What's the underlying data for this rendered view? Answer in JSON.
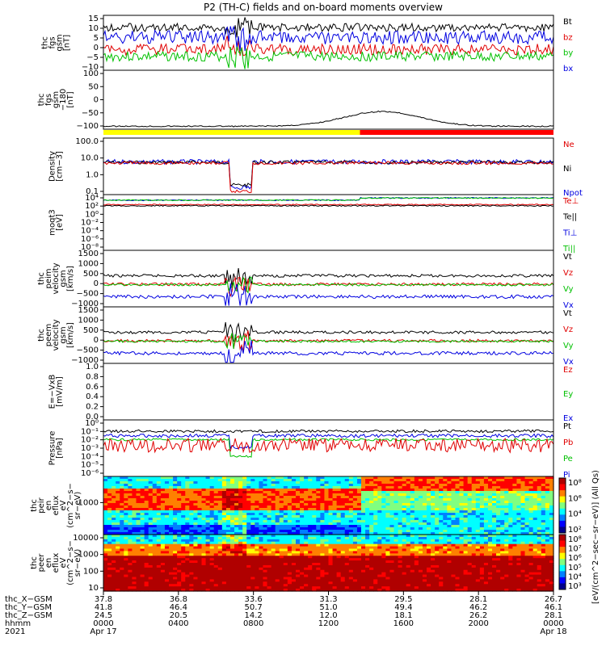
{
  "title": "P2 (TH-C) fields and on-board moments overview",
  "chart_data": [
    {
      "type": "line",
      "ylabel": "thc\nfgs\ngsm\n[nT]",
      "yticks": [
        "15",
        "10",
        "5",
        "0",
        "−5",
        "−10"
      ],
      "ylim": [
        -15,
        15
      ],
      "legend": [
        {
          "name": "Bt",
          "color": "#000000"
        },
        {
          "name": "bz",
          "color": "#e00000"
        },
        {
          "name": "by",
          "color": "#00c000"
        },
        {
          "name": "bx",
          "color": "#0000e0"
        }
      ],
      "series": [
        {
          "name": "Bt",
          "level": 8
        },
        {
          "name": "bz",
          "level": -3
        },
        {
          "name": "by",
          "level": -6
        },
        {
          "name": "bx",
          "level": 2
        }
      ]
    },
    {
      "type": "line",
      "ylabel": "thc\nfgs\ngsm\n−180\n[nT]",
      "yticks": [
        "100",
        "50",
        "0",
        "−50",
        "−100"
      ],
      "ylim": [
        -120,
        100
      ],
      "series": [
        {
          "name": "black",
          "level": -100
        }
      ]
    },
    {
      "type": "line",
      "ylabel": "Density\n[cm−3]",
      "yticks": [
        "100.0",
        "10.0",
        "1.0",
        "0.1"
      ],
      "scale": "log",
      "legend": [
        {
          "name": "Ne",
          "color": "#e00000"
        },
        {
          "name": "Ni",
          "color": "#000000"
        },
        {
          "name": "Npot",
          "color": "#0000e0"
        }
      ]
    },
    {
      "type": "line",
      "ylabel": "moqt3\n[eV]",
      "yticks": [
        "10⁴",
        "10²",
        "10⁰",
        "10⁻²",
        "10⁻⁴",
        "10⁻⁶",
        "10⁻⁸"
      ],
      "scale": "log",
      "legend": [
        {
          "name": "Te⊥",
          "color": "#e00000"
        },
        {
          "name": "Te||",
          "color": "#000000"
        },
        {
          "name": "Ti⊥",
          "color": "#0000e0"
        },
        {
          "name": "Ti||",
          "color": "#00c000"
        }
      ]
    },
    {
      "type": "line",
      "ylabel": "thc\npeim\nvelocity\ngsm\n[km/s]",
      "yticks": [
        "1500",
        "1000",
        "500",
        "0",
        "−500",
        "−1000"
      ],
      "ylim": [
        -1000,
        1500
      ],
      "legend": [
        {
          "name": "Vt",
          "color": "#000000"
        },
        {
          "name": "Vz",
          "color": "#e00000"
        },
        {
          "name": "Vy",
          "color": "#00c000"
        },
        {
          "name": "Vx",
          "color": "#0000e0"
        }
      ]
    },
    {
      "type": "line",
      "ylabel": "thc\npeem\nvelocity\ngsm\n[km/s]",
      "yticks": [
        "1500",
        "1000",
        "500",
        "0",
        "−500",
        "−1000"
      ],
      "ylim": [
        -1000,
        1500
      ],
      "legend": [
        {
          "name": "Vt",
          "color": "#000000"
        },
        {
          "name": "Vz",
          "color": "#e00000"
        },
        {
          "name": "Vy",
          "color": "#00c000"
        },
        {
          "name": "Vx",
          "color": "#0000e0"
        }
      ]
    },
    {
      "type": "line",
      "ylabel": "E=−VxB\n[mV/m]",
      "yticks": [
        "1.0",
        "0.8",
        "0.6",
        "0.4",
        "0.2",
        "0.0"
      ],
      "ylim": [
        0,
        1
      ],
      "legend": [
        {
          "name": "Ez",
          "color": "#e00000"
        },
        {
          "name": "Ey",
          "color": "#00c000"
        },
        {
          "name": "Ex",
          "color": "#0000e0"
        }
      ]
    },
    {
      "type": "line",
      "ylabel": "Pressure\n[nPa]",
      "yticks": [
        "10⁰",
        "10⁻¹",
        "10⁻²",
        "10⁻³",
        "10⁻⁴",
        "10⁻⁵",
        "10⁻⁶"
      ],
      "scale": "log",
      "legend": [
        {
          "name": "Pt",
          "color": "#000000"
        },
        {
          "name": "Pb",
          "color": "#e00000"
        },
        {
          "name": "Pe",
          "color": "#00c000"
        },
        {
          "name": "Pi",
          "color": "#0000e0"
        }
      ]
    },
    {
      "type": "heatmap",
      "ylabel": "thc\npeir\nen\neflux\neV\n(cm^2−s−\nsr−eV)",
      "yticks": [
        "1000"
      ]
    },
    {
      "type": "heatmap",
      "ylabel": "thc\npeer\nen\neflux\neV\n(cm^2−s−\nsr−eV)",
      "yticks": [
        "10000",
        "1000",
        "100",
        "10"
      ]
    }
  ],
  "colorbar": {
    "label": "[eV/(cm^2−sec−sr−eV)] (All Qs)",
    "ticks1": [
      "10⁸",
      "10⁶",
      "10⁴",
      "10²"
    ],
    "ticks2": [
      "10⁸",
      "10⁷",
      "10⁶",
      "10⁵",
      "10⁴",
      "10³"
    ]
  },
  "xaxis": {
    "row_labels": [
      "thc_X−GSM",
      "thc_Y−GSM",
      "thc_Z−GSM",
      "hhmm",
      "2021"
    ],
    "columns": [
      [
        "37.8",
        "41.8",
        "24.5",
        "0000",
        "Apr 17"
      ],
      [
        "36.8",
        "46.4",
        "20.5",
        "0400",
        ""
      ],
      [
        "33.6",
        "50.7",
        "14.2",
        "0800",
        ""
      ],
      [
        "31.3",
        "51.0",
        "12.0",
        "1200",
        ""
      ],
      [
        "29.5",
        "49.4",
        "18.1",
        "1600",
        ""
      ],
      [
        "28.1",
        "46.2",
        "26.2",
        "2000",
        ""
      ],
      [
        "26.7",
        "46.1",
        "28.1",
        "0000",
        "Apr 18"
      ]
    ]
  },
  "status_bar": [
    {
      "color": "#ffff00",
      "from": 0,
      "to": 0.57
    },
    {
      "color": "#ff0000",
      "from": 0.57,
      "to": 1
    }
  ],
  "colors": {
    "black": "#000000",
    "red": "#e00000",
    "green": "#00c000",
    "blue": "#0000e0"
  }
}
